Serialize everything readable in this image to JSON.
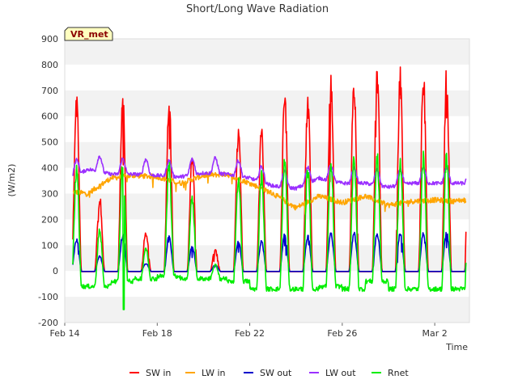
{
  "chart_data": {
    "type": "line",
    "title": "Short/Long Wave Radiation",
    "xlabel": "Time",
    "ylabel": "(W/m2)",
    "badge": "VR_met",
    "xlim": [
      0,
      17.5
    ],
    "ylim": [
      -200,
      900
    ],
    "yticks": [
      -200,
      -100,
      0,
      100,
      200,
      300,
      400,
      500,
      600,
      700,
      800,
      900
    ],
    "xticks": [
      {
        "value": 0,
        "label": "Feb 14"
      },
      {
        "value": 4,
        "label": "Feb 18"
      },
      {
        "value": 8,
        "label": "Feb 22"
      },
      {
        "value": 12,
        "label": "Feb 26"
      },
      {
        "value": 16,
        "label": "Mar 2"
      }
    ],
    "grid": "horizontal bands",
    "legend_position": "bottom",
    "start_day": 0.35,
    "end_day": 17.35,
    "series": [
      {
        "name": "SW in",
        "color": "#ff0000",
        "peaks": [
          700,
          300,
          720,
          160,
          720,
          480,
          90,
          580,
          570,
          735,
          700,
          770,
          780,
          805,
          795,
          795,
          795
        ],
        "values_note": "daily peak values"
      },
      {
        "name": "LW in",
        "color": "#ffa500",
        "levels": [
          310,
          300,
          360,
          370,
          365,
          340,
          370,
          375,
          340,
          300,
          245,
          290,
          265,
          290,
          255,
          270,
          275,
          270
        ],
        "values_note": "daily mean values"
      },
      {
        "name": "SW out",
        "color": "#0000cc",
        "peaks": [
          130,
          60,
          145,
          30,
          140,
          100,
          25,
          120,
          120,
          150,
          140,
          150,
          155,
          155,
          155,
          155,
          155
        ],
        "values_note": "daily peak values"
      },
      {
        "name": "LW out",
        "color": "#9b30ff",
        "levels": [
          345,
          395,
          375,
          375,
          370,
          365,
          380,
          375,
          360,
          330,
          320,
          360,
          340,
          340,
          325,
          340,
          340,
          340
        ],
        "values_note": "daily mean values"
      },
      {
        "name": "Rnet",
        "color": "#00ee00",
        "peaks": [
          420,
          170,
          440,
          95,
          430,
          300,
          30,
          380,
          390,
          460,
          420,
          450,
          460,
          465,
          455,
          465,
          470
        ],
        "night_levels": [
          -60,
          -60,
          -40,
          -30,
          -20,
          -30,
          -30,
          -40,
          -70,
          -70,
          -70,
          -60,
          -70,
          -40,
          -70,
          -70,
          -70
        ],
        "values_note": "daily peak values and nighttime levels"
      }
    ]
  }
}
